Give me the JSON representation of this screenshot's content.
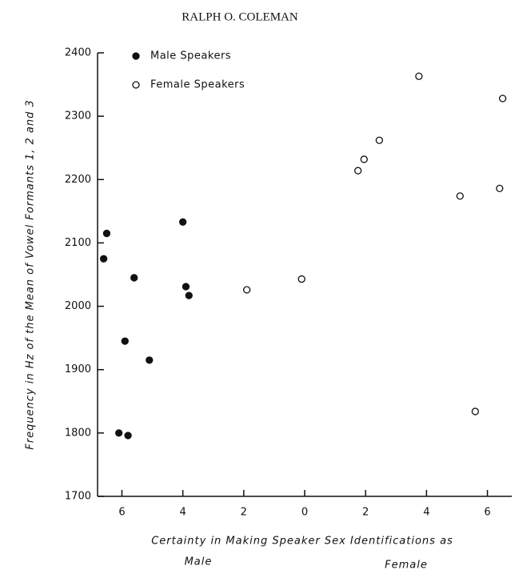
{
  "chart_data": {
    "type": "scatter",
    "header": "RALPH O. COLEMAN",
    "y_label": "Frequency in Hz of the Mean of Vowel Formants 1, 2 and 3",
    "x_label": "Certainty in Making Speaker Sex Identifications as",
    "x_label_left": "Male",
    "x_label_right": "Female",
    "xlim": [
      -6.8,
      6.8
    ],
    "xticks": [
      {
        "value": -6,
        "label": "6"
      },
      {
        "value": -4,
        "label": "4"
      },
      {
        "value": -2,
        "label": "2"
      },
      0,
      2,
      4,
      6
    ],
    "ylim": [
      1700,
      2400
    ],
    "yticks": [
      1700,
      1800,
      1900,
      2000,
      2100,
      2200,
      2300,
      2400
    ],
    "legend": "top-left",
    "series": [
      {
        "name": "Male Speakers",
        "color": "#111111",
        "filled": true,
        "x": [
          -6.5,
          -6.6,
          -5.6,
          -4.0,
          -3.9,
          -3.8,
          -5.9,
          -5.1,
          -6.1,
          -5.8
        ],
        "values": [
          2115,
          2075,
          2045,
          2133,
          2031,
          2017,
          1945,
          1915,
          1800,
          1796
        ]
      },
      {
        "name": "Female Speakers",
        "color": "#111111",
        "filled": false,
        "x": [
          -1.9,
          -0.1,
          1.75,
          1.95,
          2.45,
          3.75,
          5.1,
          6.4,
          6.5,
          5.6
        ],
        "values": [
          2026,
          2043,
          2214,
          2232,
          2262,
          2363,
          2174,
          2186,
          2328,
          1834
        ]
      }
    ]
  }
}
